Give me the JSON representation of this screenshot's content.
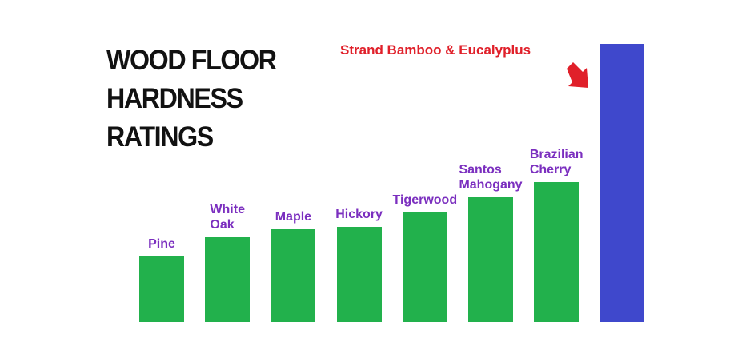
{
  "chart_data": {
    "type": "bar",
    "title": "WOOD FLOOR HARDNESS RATINGS",
    "categories": [
      "Pine",
      "White Oak",
      "Maple",
      "Hickory",
      "Tigerwood",
      "Santos Mahogany",
      "Brazilian Cherry",
      "Strand Bamboo & Eucalyplus"
    ],
    "values": [
      82,
      106,
      116,
      119,
      137,
      156,
      175,
      348
    ],
    "colors": [
      "#22b14c",
      "#22b14c",
      "#22b14c",
      "#22b14c",
      "#22b14c",
      "#22b14c",
      "#22b14c",
      "#3f48cc"
    ]
  }
}
